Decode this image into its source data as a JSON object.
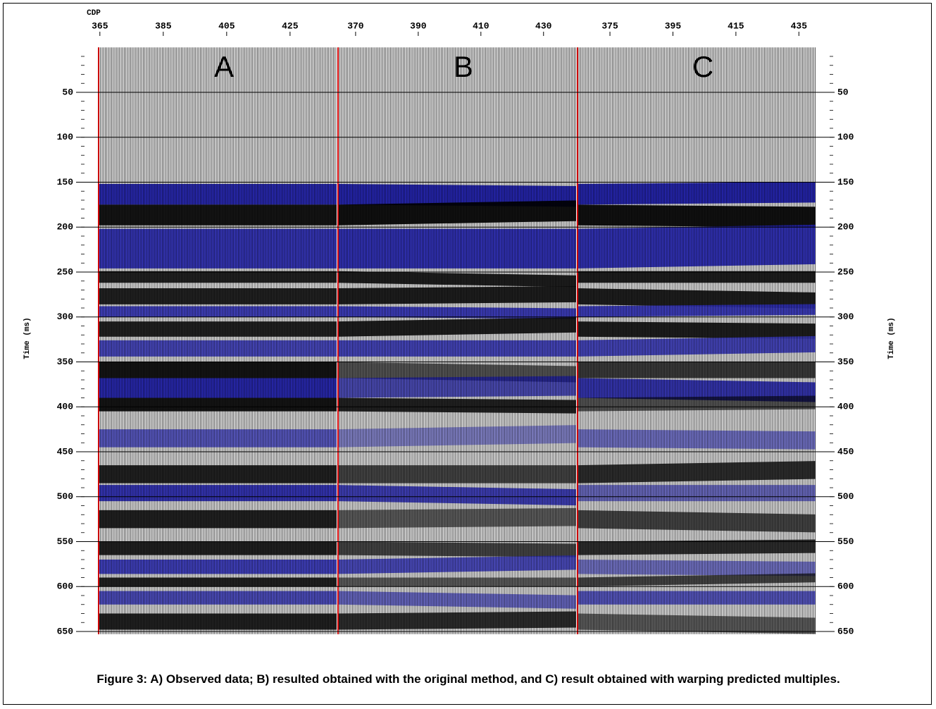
{
  "figure": {
    "x_axis_label": "CDP",
    "y_axis_label": "Time (ms)",
    "ylim": [
      0,
      653
    ],
    "yticks": [
      50,
      100,
      150,
      200,
      250,
      300,
      350,
      400,
      450,
      500,
      550,
      600,
      650
    ],
    "panels": [
      {
        "label": "A",
        "xlim": [
          364.6,
          439.7
        ],
        "xticks": [
          365,
          385,
          405,
          425
        ]
      },
      {
        "label": "B",
        "xlim": [
          364.4,
          440.4
        ],
        "xticks": [
          370,
          390,
          410,
          430
        ]
      },
      {
        "label": "C",
        "xlim": [
          364.7,
          440.3
        ],
        "xticks": [
          375,
          395,
          415,
          435
        ]
      }
    ]
  },
  "caption": "Figure 3: A) Observed data; B) resulted obtained with the original method, and C) result obtained with warping predicted multiples."
}
